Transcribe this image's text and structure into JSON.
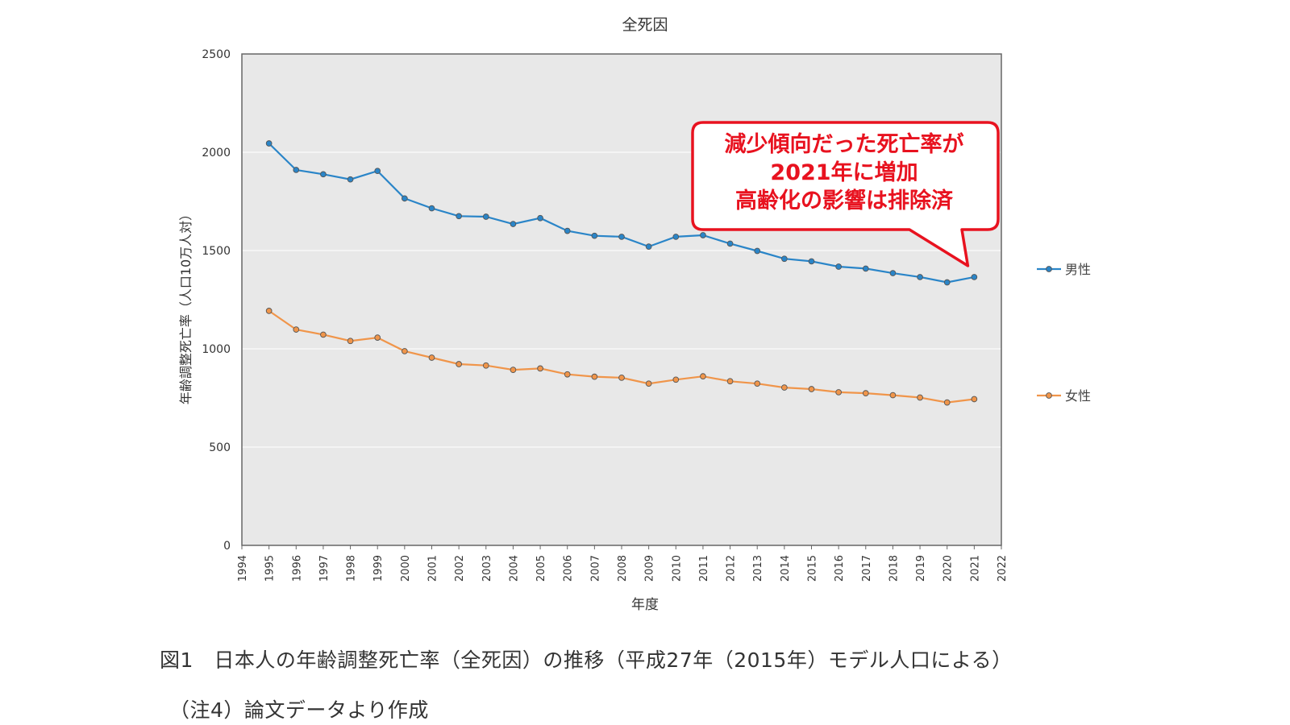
{
  "chart_data": {
    "type": "line",
    "title": "全死因",
    "xlabel": "年度",
    "ylabel": "年齢調整死亡率（人口10万人対）",
    "xlim": [
      1994,
      2022
    ],
    "ylim": [
      0,
      2500
    ],
    "y_ticks": [
      0,
      500,
      1000,
      1500,
      2000,
      2500
    ],
    "x_ticks": [
      1994,
      1995,
      1996,
      1997,
      1998,
      1999,
      2000,
      2001,
      2002,
      2003,
      2004,
      2005,
      2006,
      2007,
      2008,
      2009,
      2010,
      2011,
      2012,
      2013,
      2014,
      2015,
      2016,
      2017,
      2018,
      2019,
      2020,
      2021,
      2022
    ],
    "x": [
      1995,
      1996,
      1997,
      1998,
      1999,
      2000,
      2001,
      2002,
      2003,
      2004,
      2005,
      2006,
      2007,
      2008,
      2009,
      2010,
      2011,
      2012,
      2013,
      2014,
      2015,
      2016,
      2017,
      2018,
      2019,
      2020,
      2021
    ],
    "grid": true,
    "legend_position": "right",
    "plot_background": "#e8e8e8",
    "series": [
      {
        "name": "男性",
        "color": "#2a85c8",
        "values": [
          2045,
          1910,
          1888,
          1862,
          1905,
          1765,
          1715,
          1675,
          1672,
          1635,
          1665,
          1600,
          1575,
          1570,
          1520,
          1570,
          1578,
          1535,
          1498,
          1458,
          1445,
          1418,
          1408,
          1385,
          1365,
          1338,
          1365
        ]
      },
      {
        "name": "女性",
        "color": "#f0954a",
        "values": [
          1193,
          1098,
          1072,
          1040,
          1057,
          988,
          955,
          922,
          915,
          893,
          900,
          870,
          858,
          853,
          823,
          843,
          860,
          835,
          823,
          803,
          795,
          779,
          774,
          764,
          752,
          727,
          744
        ]
      }
    ],
    "annotation": {
      "lines": [
        "減少傾向だった死亡率が",
        "2021年に増加",
        "高齢化の影響は排除済"
      ],
      "color": "#e8121f",
      "points_to": {
        "x": 2021,
        "series": "男性"
      }
    }
  },
  "caption": {
    "line1": "図1　日本人の年齢調整死亡率（全死因）の推移（平成27年（2015年）モデル人口による）",
    "line2": "（注4）論文データより作成"
  }
}
